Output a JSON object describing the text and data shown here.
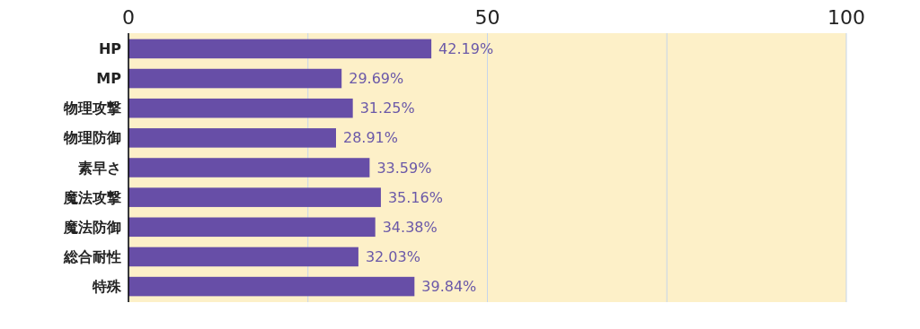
{
  "chart_data": {
    "type": "bar",
    "orientation": "horizontal",
    "categories": [
      "HP",
      "MP",
      "物理攻撃",
      "物理防御",
      "素早さ",
      "魔法攻撃",
      "魔法防御",
      "総合耐性",
      "特殊"
    ],
    "values": [
      42.19,
      29.69,
      31.25,
      28.91,
      33.59,
      35.16,
      34.38,
      32.03,
      39.84
    ],
    "value_labels": [
      "42.19%",
      "29.69%",
      "31.25%",
      "28.91%",
      "33.59%",
      "35.16%",
      "34.38%",
      "32.03%",
      "39.84%"
    ],
    "color": "#674ea7",
    "xlim": [
      0,
      100
    ],
    "xticks": [
      0,
      {
        "value": 25,
        "label": null
      },
      50,
      {
        "value": 75,
        "label": null
      },
      100
    ],
    "grid": "x"
  }
}
